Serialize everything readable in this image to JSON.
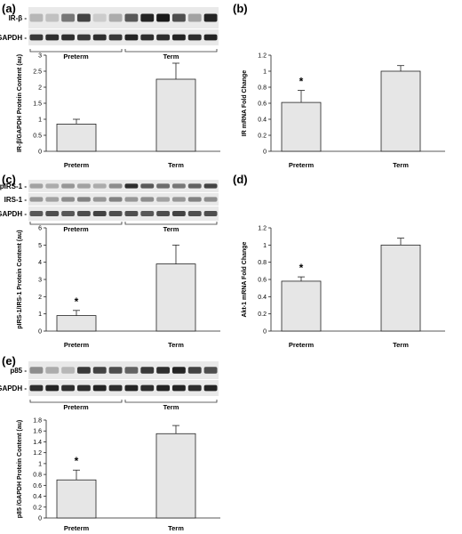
{
  "chart_data": [
    {
      "panel": "(a)",
      "type": "bar",
      "categories": [
        "Preterm",
        "Term"
      ],
      "values": [
        0.85,
        2.25
      ],
      "errors": [
        0.15,
        0.5
      ],
      "ylabel": "IR-β/GAPDH Protein Content (au)",
      "ylim": [
        0,
        3
      ],
      "yticks": [
        "0",
        "0.5",
        "1",
        "1.5",
        "2",
        "2.5",
        "3"
      ],
      "significance": [
        "",
        ""
      ],
      "blot": {
        "rows": [
          {
            "label": "IR-β -",
            "intensities": [
              0.25,
              0.2,
              0.55,
              0.8,
              0.15,
              0.3,
              0.7,
              0.95,
              1.0,
              0.75,
              0.35,
              0.95
            ]
          },
          {
            "label": "GAPDH -",
            "intensities": [
              0.85,
              0.9,
              0.9,
              0.85,
              0.9,
              0.85,
              0.95,
              0.9,
              0.9,
              0.95,
              0.9,
              0.95
            ]
          }
        ],
        "groups": [
          {
            "label": "Preterm",
            "lanes": 6
          },
          {
            "label": "Term",
            "lanes": 6
          }
        ]
      },
      "bar_color": "#e6e6e6"
    },
    {
      "panel": "(b)",
      "type": "bar",
      "categories": [
        "Preterm",
        "Term"
      ],
      "values": [
        0.61,
        1.0
      ],
      "errors": [
        0.15,
        0.07
      ],
      "ylabel": "IR mRNA Fold Change",
      "ylim": [
        0,
        1.2
      ],
      "yticks": [
        "0",
        "0.2",
        "0.4",
        "0.6",
        "0.8",
        "1",
        "1.2"
      ],
      "significance": [
        "*",
        ""
      ],
      "bar_color": "#e6e6e6"
    },
    {
      "panel": "(c)",
      "type": "bar",
      "categories": [
        "Preterm",
        "Term"
      ],
      "values": [
        0.9,
        3.9
      ],
      "errors": [
        0.3,
        1.1
      ],
      "ylabel": "pIRS-1/IRS-1 Protein Content (au)",
      "ylim": [
        0,
        6
      ],
      "yticks": [
        "0",
        "1",
        "2",
        "3",
        "4",
        "5",
        "6"
      ],
      "significance": [
        "*",
        ""
      ],
      "blot": {
        "rows": [
          {
            "label": "pIRS-1 -",
            "intensities": [
              0.35,
              0.3,
              0.4,
              0.35,
              0.3,
              0.45,
              0.9,
              0.7,
              0.6,
              0.55,
              0.65,
              0.8
            ]
          },
          {
            "label": "IRS-1 -",
            "intensities": [
              0.4,
              0.35,
              0.45,
              0.5,
              0.4,
              0.5,
              0.4,
              0.45,
              0.35,
              0.4,
              0.5,
              0.45
            ]
          },
          {
            "label": "GAPDH -",
            "intensities": [
              0.7,
              0.75,
              0.7,
              0.75,
              0.8,
              0.75,
              0.75,
              0.7,
              0.75,
              0.8,
              0.75,
              0.75
            ]
          }
        ],
        "groups": [
          {
            "label": "Preterm",
            "lanes": 6
          },
          {
            "label": "Term",
            "lanes": 6
          }
        ]
      },
      "bar_color": "#e6e6e6"
    },
    {
      "panel": "(d)",
      "type": "bar",
      "categories": [
        "Preterm",
        "Term"
      ],
      "values": [
        0.58,
        1.0
      ],
      "errors": [
        0.05,
        0.08
      ],
      "ylabel": "Akt-1 mRNA Fold Change",
      "ylim": [
        0,
        1.2
      ],
      "yticks": [
        "0",
        "0.2",
        "0.4",
        "0.6",
        "0.8",
        "1",
        "1.2"
      ],
      "significance": [
        "*",
        ""
      ],
      "bar_color": "#e6e6e6"
    },
    {
      "panel": "(e)",
      "type": "bar",
      "categories": [
        "Preterm",
        "Term"
      ],
      "values": [
        0.7,
        1.55
      ],
      "errors": [
        0.18,
        0.15
      ],
      "ylabel": "p85 /GAPDH Protein Content (au)",
      "ylim": [
        0,
        1.8
      ],
      "yticks": [
        "0",
        "0.2",
        "0.4",
        "0.6",
        "0.8",
        "1",
        "1.2",
        "1.4",
        "1.6",
        "1.8"
      ],
      "significance": [
        "*",
        ""
      ],
      "blot": {
        "rows": [
          {
            "label": "p85 -",
            "intensities": [
              0.45,
              0.3,
              0.25,
              0.85,
              0.8,
              0.75,
              0.65,
              0.85,
              0.9,
              0.95,
              0.8,
              0.75
            ]
          },
          {
            "label": "GAPDH -",
            "intensities": [
              0.9,
              0.95,
              0.9,
              0.9,
              0.95,
              0.9,
              0.95,
              0.9,
              0.95,
              0.95,
              0.9,
              0.95
            ]
          }
        ],
        "groups": [
          {
            "label": "Preterm",
            "lanes": 6
          },
          {
            "label": "Term",
            "lanes": 6
          }
        ]
      },
      "bar_color": "#e6e6e6"
    }
  ]
}
